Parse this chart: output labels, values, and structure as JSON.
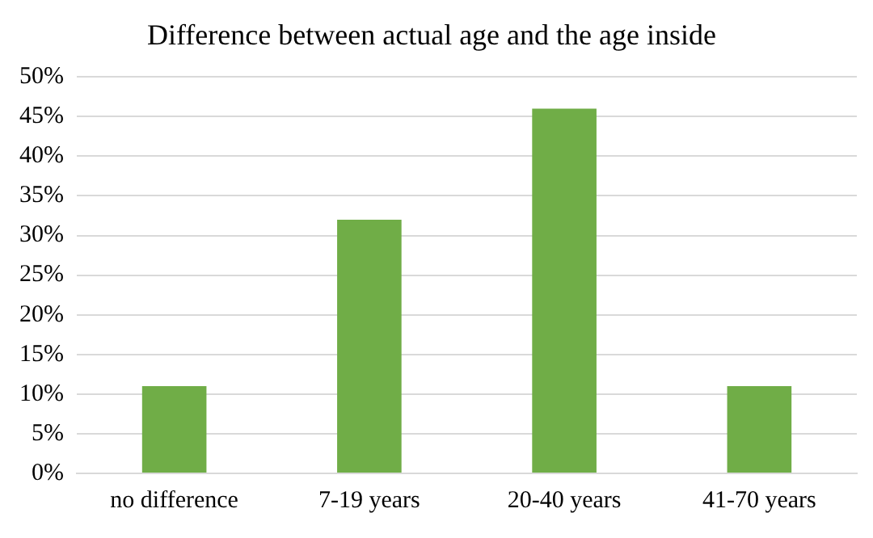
{
  "chart_data": {
    "type": "bar",
    "title": "Difference between actual age and the age inside",
    "categories": [
      "no difference",
      "7-19 years",
      "20-40 years",
      "41-70 years"
    ],
    "values": [
      11,
      32,
      46,
      11
    ],
    "color": "#70ad47",
    "ylim": [
      0,
      50
    ],
    "yticks": [
      {
        "value": 0,
        "label": "0%"
      },
      {
        "value": 5,
        "label": "5%"
      },
      {
        "value": 10,
        "label": "10%"
      },
      {
        "value": 15,
        "label": "15%"
      },
      {
        "value": 20,
        "label": "20%"
      },
      {
        "value": 25,
        "label": "25%"
      },
      {
        "value": 30,
        "label": "30%"
      },
      {
        "value": 35,
        "label": "35%"
      },
      {
        "value": 40,
        "label": "40%"
      },
      {
        "value": 45,
        "label": "45%"
      },
      {
        "value": 50,
        "label": "50%"
      }
    ],
    "grid": "y"
  }
}
